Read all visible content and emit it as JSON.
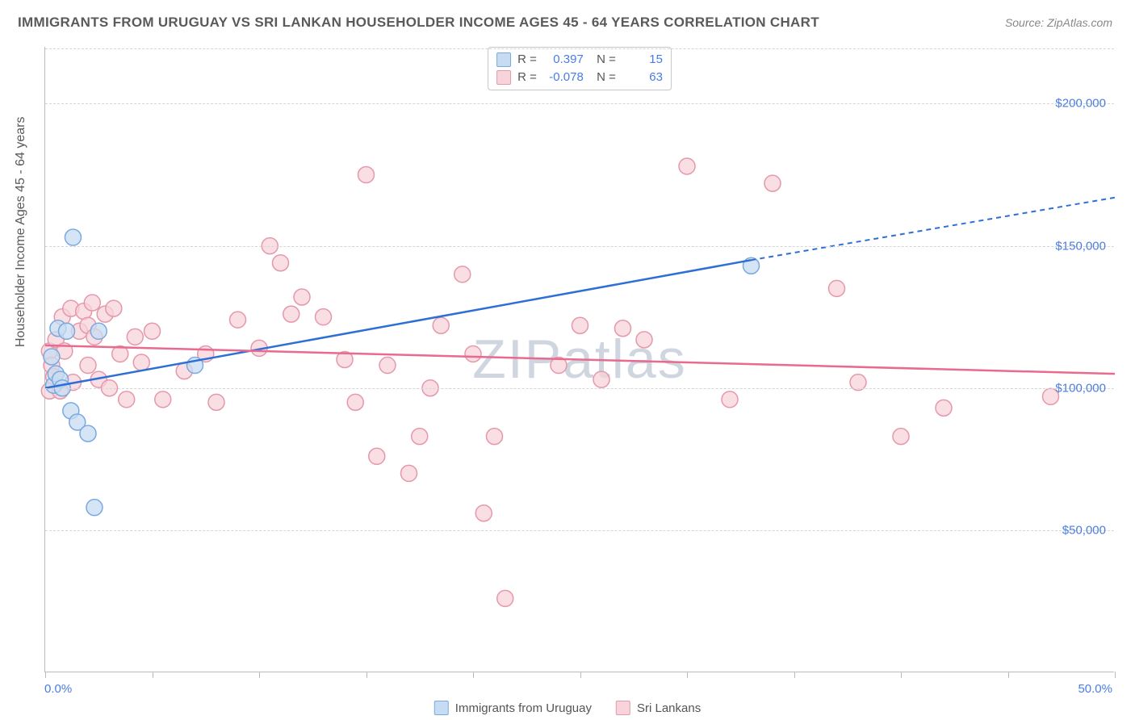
{
  "title": "IMMIGRANTS FROM URUGUAY VS SRI LANKAN HOUSEHOLDER INCOME AGES 45 - 64 YEARS CORRELATION CHART",
  "source": "Source: ZipAtlas.com",
  "watermark": "ZIPatlas",
  "yaxis_title": "Householder Income Ages 45 - 64 years",
  "chart": {
    "type": "scatter",
    "xlim": [
      0,
      50
    ],
    "ylim": [
      0,
      220000
    ],
    "xtick_labels": [
      "0.0%",
      "50.0%"
    ],
    "ytick_values": [
      50000,
      100000,
      150000,
      200000
    ],
    "ytick_labels": [
      "$50,000",
      "$100,000",
      "$150,000",
      "$200,000"
    ],
    "grid_color": "#d5d5d5",
    "background_color": "#ffffff",
    "x_minor_ticks": 10,
    "series": [
      {
        "name": "Immigrants from Uruguay",
        "marker_fill": "#c7dcf2",
        "marker_stroke": "#7aa9e0",
        "line_color": "#2e6fd6",
        "marker_radius": 10,
        "R": "0.397",
        "N": "15",
        "trend": {
          "x1": 0,
          "y1": 100000,
          "x2": 33,
          "y2": 145000,
          "dash_x2": 50,
          "dash_y2": 167000
        },
        "points": [
          [
            0.3,
            111000
          ],
          [
            0.4,
            101000
          ],
          [
            0.5,
            105000
          ],
          [
            0.6,
            121000
          ],
          [
            0.7,
            103000
          ],
          [
            0.8,
            100000
          ],
          [
            1.0,
            120000
          ],
          [
            1.2,
            92000
          ],
          [
            1.3,
            153000
          ],
          [
            1.5,
            88000
          ],
          [
            2.0,
            84000
          ],
          [
            2.3,
            58000
          ],
          [
            2.5,
            120000
          ],
          [
            7.0,
            108000
          ],
          [
            33.0,
            143000
          ]
        ]
      },
      {
        "name": "Sri Lankans",
        "marker_fill": "#f7d3db",
        "marker_stroke": "#e598ab",
        "line_color": "#e96a8f",
        "marker_radius": 10,
        "R": "-0.078",
        "N": "63",
        "trend": {
          "x1": 0,
          "y1": 115000,
          "x2": 50,
          "y2": 105000
        },
        "points": [
          [
            0.2,
            113000
          ],
          [
            0.2,
            99000
          ],
          [
            0.3,
            108000
          ],
          [
            0.4,
            104000
          ],
          [
            0.5,
            117000
          ],
          [
            0.7,
            99000
          ],
          [
            0.8,
            125000
          ],
          [
            0.9,
            113000
          ],
          [
            1.2,
            128000
          ],
          [
            1.3,
            102000
          ],
          [
            1.6,
            120000
          ],
          [
            1.8,
            127000
          ],
          [
            2.0,
            122000
          ],
          [
            2.0,
            108000
          ],
          [
            2.2,
            130000
          ],
          [
            2.3,
            118000
          ],
          [
            2.5,
            103000
          ],
          [
            2.8,
            126000
          ],
          [
            3.0,
            100000
          ],
          [
            3.2,
            128000
          ],
          [
            3.5,
            112000
          ],
          [
            3.8,
            96000
          ],
          [
            4.2,
            118000
          ],
          [
            4.5,
            109000
          ],
          [
            5.0,
            120000
          ],
          [
            5.5,
            96000
          ],
          [
            6.5,
            106000
          ],
          [
            7.5,
            112000
          ],
          [
            8.0,
            95000
          ],
          [
            9.0,
            124000
          ],
          [
            10.0,
            114000
          ],
          [
            10.5,
            150000
          ],
          [
            11.0,
            144000
          ],
          [
            11.5,
            126000
          ],
          [
            12.0,
            132000
          ],
          [
            13.0,
            125000
          ],
          [
            14.0,
            110000
          ],
          [
            14.5,
            95000
          ],
          [
            15.0,
            175000
          ],
          [
            15.5,
            76000
          ],
          [
            16.0,
            108000
          ],
          [
            17.0,
            70000
          ],
          [
            17.5,
            83000
          ],
          [
            18.0,
            100000
          ],
          [
            18.5,
            122000
          ],
          [
            19.5,
            140000
          ],
          [
            20.0,
            112000
          ],
          [
            20.5,
            56000
          ],
          [
            21.0,
            83000
          ],
          [
            21.5,
            26000
          ],
          [
            24.0,
            108000
          ],
          [
            25.0,
            122000
          ],
          [
            26.0,
            103000
          ],
          [
            27.0,
            121000
          ],
          [
            28.0,
            117000
          ],
          [
            30.0,
            178000
          ],
          [
            32.0,
            96000
          ],
          [
            34.0,
            172000
          ],
          [
            37.0,
            135000
          ],
          [
            38.0,
            102000
          ],
          [
            40.0,
            83000
          ],
          [
            42.0,
            93000
          ],
          [
            47.0,
            97000
          ]
        ]
      }
    ]
  },
  "legend_bottom": [
    {
      "label": "Immigrants from Uruguay",
      "fill": "#c7dcf2",
      "stroke": "#7aa9e0"
    },
    {
      "label": "Sri Lankans",
      "fill": "#f7d3db",
      "stroke": "#e598ab"
    }
  ]
}
